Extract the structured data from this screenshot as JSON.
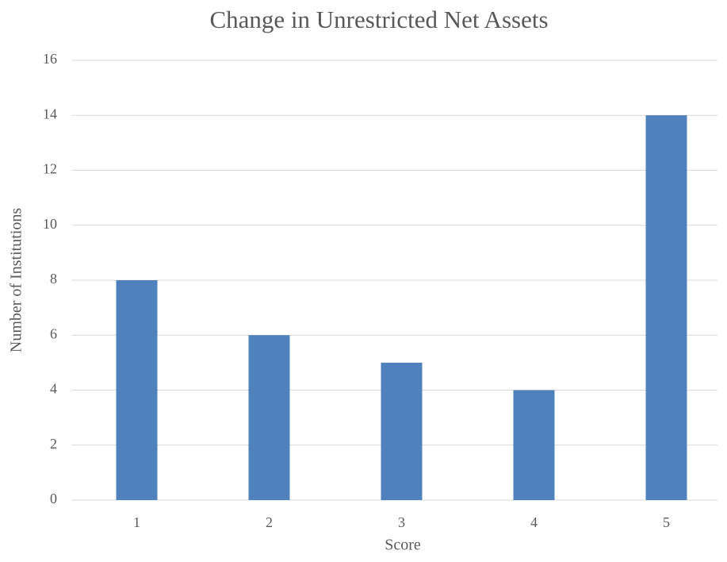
{
  "chart_data": {
    "type": "bar",
    "title": "Change in Unrestricted Net Assets",
    "x_label": "Score",
    "y_label": "Number of Institutions",
    "categories": [
      "1",
      "2",
      "3",
      "4",
      "5"
    ],
    "values": [
      8,
      6,
      5,
      4,
      14
    ],
    "color": "#4f81bd",
    "ylim": [
      0,
      16
    ],
    "yticks": [
      0,
      2,
      4,
      6,
      8,
      10,
      12,
      14,
      16
    ],
    "grid": true
  }
}
